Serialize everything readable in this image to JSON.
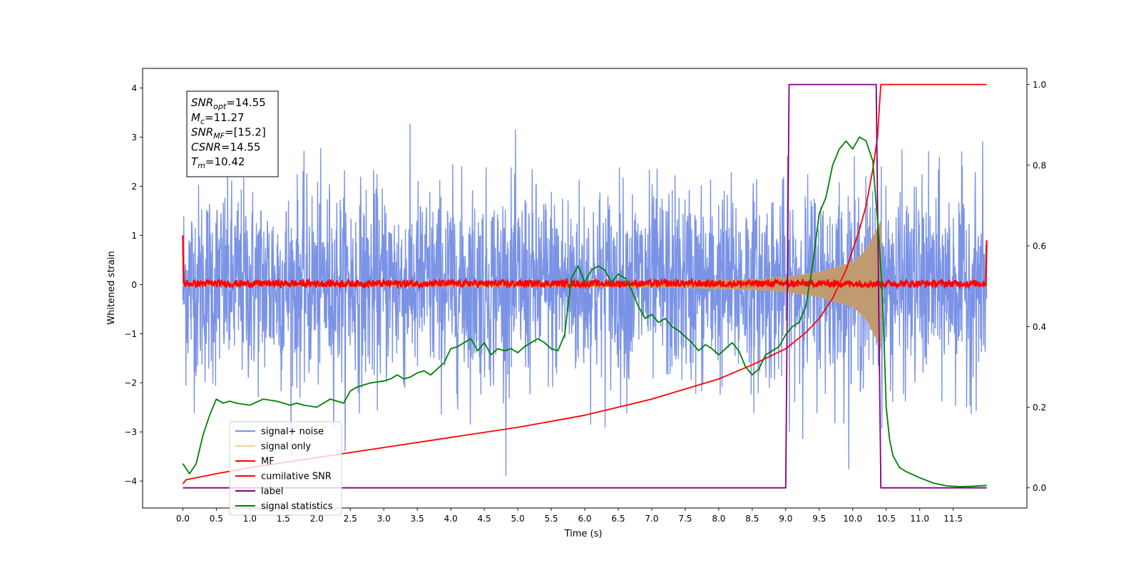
{
  "chart_data": {
    "type": "line",
    "xlabel": "Time (s)",
    "ylabel": "Whitened strain",
    "xlim": [
      -0.6,
      12.6
    ],
    "ylim": [
      -4.55,
      4.4
    ],
    "y2lim": [
      -0.05,
      1.04
    ],
    "x_ticks": [
      "0.0",
      "0.5",
      "1.0",
      "1.5",
      "2.0",
      "2.5",
      "3.0",
      "3.5",
      "4.0",
      "4.5",
      "5.0",
      "5.5",
      "6.0",
      "6.5",
      "7.0",
      "7.5",
      "8.0",
      "8.5",
      "9.0",
      "9.5",
      "10.0",
      "10.5",
      "11.0",
      "11.5"
    ],
    "y_ticks": [
      "4",
      "3",
      "2",
      "1",
      "0",
      "−1",
      "−2",
      "−3",
      "−4"
    ],
    "y2_ticks": [
      "1.0",
      "0.8",
      "0.6",
      "0.4",
      "0.2",
      "0.0"
    ],
    "textbox": [
      {
        "base": "SNR",
        "sub": "opt",
        "value": "=14.55"
      },
      {
        "base": "M",
        "sub": "c",
        "value": "=11.27"
      },
      {
        "base": "SNR",
        "sub": "MF",
        "value": "=[15.2]"
      },
      {
        "base": "CSNR",
        "sub": "",
        "value": "=14.55"
      },
      {
        "base": "T",
        "sub": "m",
        "value": "=10.42"
      }
    ],
    "legend": [
      {
        "label": "signal+ noise",
        "color": "#7b93e6"
      },
      {
        "label": "signal only",
        "color": "#f7cf8a"
      },
      {
        "label": "MF",
        "color": "#ff0000"
      },
      {
        "label": "cumilative SNR",
        "color": "#ff0000"
      },
      {
        "label": "label",
        "color": "#800080"
      },
      {
        "label": "signal statistics",
        "color": "#008000"
      }
    ],
    "series": [
      {
        "name": "signal+ noise",
        "color": "#7b93e6",
        "axis": "left",
        "t_range": [
          0.0,
          12.0
        ],
        "amplitude_range": [
          -3.9,
          3.9
        ],
        "noise_std": 1.0
      },
      {
        "name": "signal only",
        "color": "#f7cf8a",
        "axis": "left",
        "chirp_start": 0.0,
        "chirp_end": 10.42,
        "envelope": {
          "x": [
            0.0,
            7.0,
            8.5,
            9.0,
            9.5,
            10.0,
            10.2,
            10.35,
            10.42
          ],
          "y": [
            0.02,
            0.05,
            0.1,
            0.15,
            0.25,
            0.45,
            0.7,
            1.1,
            1.3
          ]
        }
      },
      {
        "name": "MF",
        "color": "#ff0000",
        "axis": "left",
        "t_range": [
          0.0,
          12.0
        ],
        "base_level": 0.02,
        "noise_amp": 0.07,
        "edge_values": [
          1.0,
          0.9
        ]
      },
      {
        "name": "cumilative SNR",
        "color": "#ff0000",
        "axis": "right",
        "x": [
          0.0,
          0.05,
          0.5,
          1.0,
          2.0,
          3.0,
          4.0,
          5.0,
          6.0,
          7.0,
          8.0,
          8.5,
          9.0,
          9.3,
          9.5,
          9.7,
          9.9,
          10.0,
          10.1,
          10.2,
          10.3,
          10.37,
          10.4,
          10.42,
          12.0
        ],
        "values": [
          0.01,
          0.02,
          0.035,
          0.05,
          0.075,
          0.1,
          0.125,
          0.15,
          0.18,
          0.22,
          0.27,
          0.305,
          0.345,
          0.385,
          0.42,
          0.47,
          0.54,
          0.59,
          0.64,
          0.7,
          0.79,
          0.87,
          0.95,
          1.0,
          1.0
        ]
      },
      {
        "name": "label",
        "color": "#800080",
        "axis": "right",
        "x": [
          0.0,
          9.0,
          9.05,
          10.35,
          10.42,
          12.0
        ],
        "values": [
          0.0,
          0.0,
          1.0,
          1.0,
          0.0,
          0.0
        ]
      },
      {
        "name": "signal statistics",
        "color": "#008000",
        "axis": "right",
        "x": [
          0.0,
          0.1,
          0.2,
          0.3,
          0.4,
          0.5,
          0.6,
          0.7,
          0.8,
          1.0,
          1.2,
          1.4,
          1.6,
          1.7,
          1.8,
          2.0,
          2.2,
          2.4,
          2.5,
          2.6,
          2.8,
          3.0,
          3.1,
          3.2,
          3.3,
          3.4,
          3.5,
          3.6,
          3.7,
          3.8,
          3.9,
          4.0,
          4.1,
          4.2,
          4.3,
          4.4,
          4.5,
          4.6,
          4.7,
          4.8,
          4.9,
          5.0,
          5.1,
          5.2,
          5.3,
          5.4,
          5.5,
          5.6,
          5.7,
          5.8,
          5.9,
          6.0,
          6.1,
          6.2,
          6.3,
          6.4,
          6.5,
          6.6,
          6.7,
          6.8,
          6.9,
          7.0,
          7.1,
          7.2,
          7.3,
          7.4,
          7.5,
          7.6,
          7.7,
          7.8,
          7.9,
          8.0,
          8.1,
          8.2,
          8.3,
          8.4,
          8.5,
          8.6,
          8.7,
          8.8,
          8.9,
          9.0,
          9.1,
          9.2,
          9.3,
          9.4,
          9.5,
          9.6,
          9.7,
          9.8,
          9.9,
          10.0,
          10.1,
          10.2,
          10.3,
          10.4,
          10.45,
          10.5,
          10.55,
          10.6,
          10.7,
          10.8,
          11.0,
          11.2,
          11.4,
          11.6,
          11.8,
          12.0
        ],
        "values": [
          0.06,
          0.035,
          0.06,
          0.13,
          0.18,
          0.22,
          0.21,
          0.215,
          0.21,
          0.205,
          0.22,
          0.215,
          0.205,
          0.21,
          0.205,
          0.2,
          0.22,
          0.21,
          0.24,
          0.25,
          0.26,
          0.265,
          0.27,
          0.28,
          0.27,
          0.275,
          0.285,
          0.29,
          0.28,
          0.295,
          0.31,
          0.345,
          0.35,
          0.36,
          0.37,
          0.34,
          0.36,
          0.33,
          0.345,
          0.34,
          0.345,
          0.335,
          0.35,
          0.36,
          0.37,
          0.36,
          0.345,
          0.34,
          0.38,
          0.52,
          0.55,
          0.51,
          0.54,
          0.55,
          0.54,
          0.51,
          0.53,
          0.52,
          0.49,
          0.45,
          0.42,
          0.43,
          0.41,
          0.42,
          0.4,
          0.39,
          0.375,
          0.36,
          0.34,
          0.355,
          0.345,
          0.33,
          0.345,
          0.36,
          0.34,
          0.3,
          0.28,
          0.295,
          0.33,
          0.34,
          0.35,
          0.38,
          0.4,
          0.41,
          0.45,
          0.55,
          0.68,
          0.72,
          0.8,
          0.84,
          0.86,
          0.84,
          0.87,
          0.86,
          0.81,
          0.6,
          0.45,
          0.2,
          0.12,
          0.08,
          0.05,
          0.04,
          0.025,
          0.012,
          0.005,
          0.003,
          0.004,
          0.006
        ]
      }
    ]
  }
}
